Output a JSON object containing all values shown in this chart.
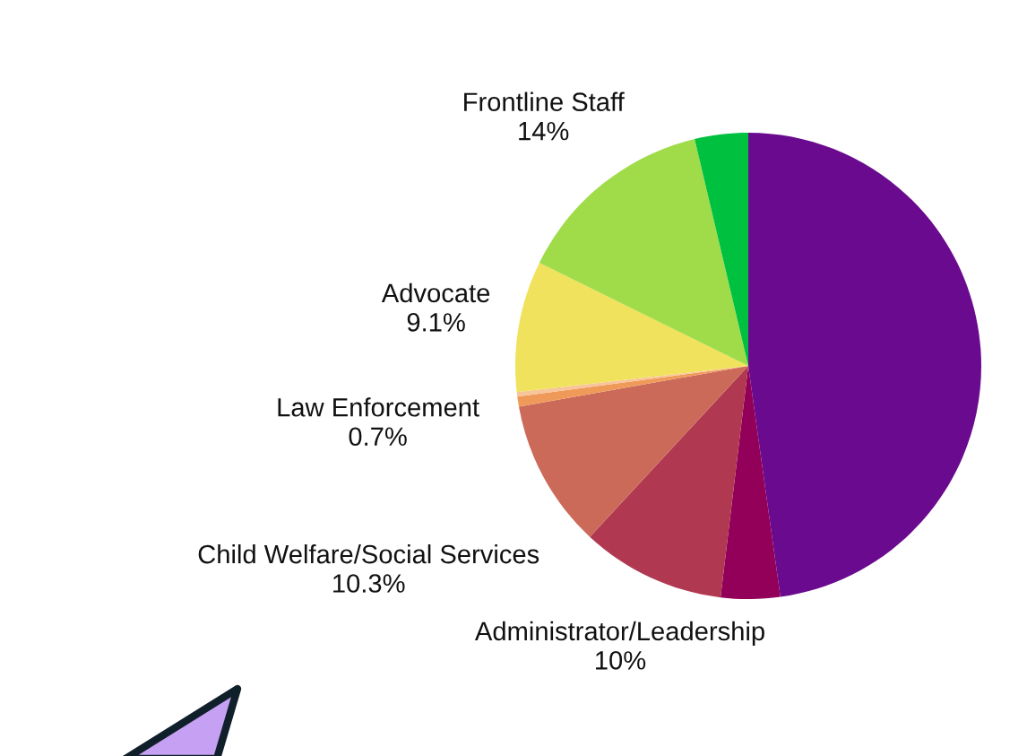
{
  "chart_data": {
    "type": "pie",
    "categories": [
      null,
      null,
      "Administrator/Leadership",
      "Child Welfare/Social Services",
      "Law Enforcement",
      null,
      "Advocate",
      "Frontline Staff",
      null
    ],
    "values": [
      47.8,
      4.1,
      10,
      10.3,
      0.7,
      0.3,
      9.1,
      14,
      3.7
    ],
    "value_labels": [
      null,
      null,
      "10%",
      "10.3%",
      "0.7%",
      null,
      "9.1%",
      "14%",
      null
    ],
    "colors": [
      "#6a0a8e",
      "#92005a",
      "#b03850",
      "#cc6a5a",
      "#f09a5a",
      "#f8c49a",
      "#f0e25c",
      "#a0dc4a",
      "#00c040"
    ]
  }
}
